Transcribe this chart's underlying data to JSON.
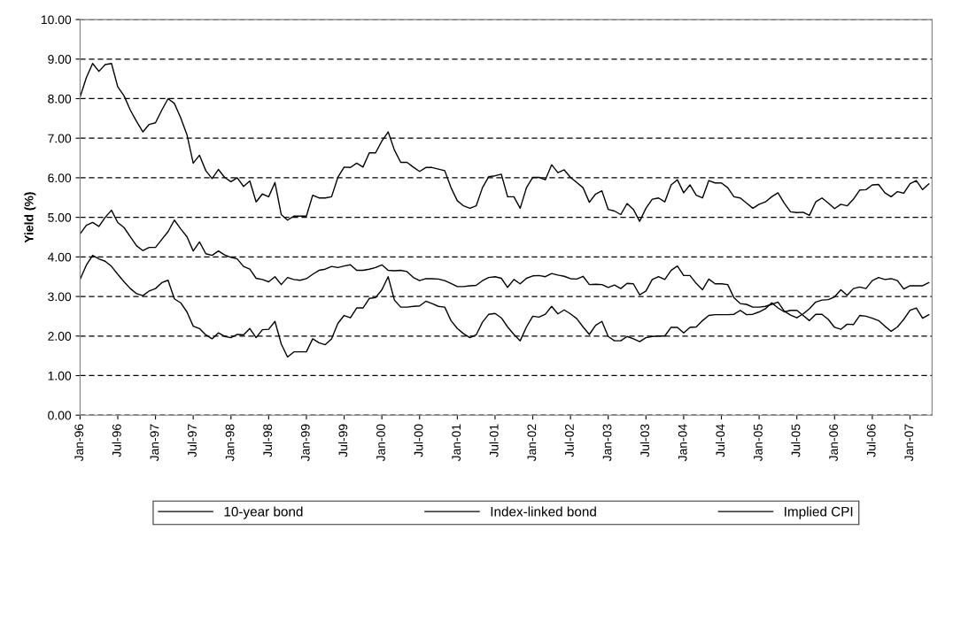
{
  "chart_data": {
    "type": "line",
    "ylabel": "Yield (%)",
    "categories": [
      "Jan-96",
      null,
      null,
      null,
      null,
      null,
      "Jul-96",
      null,
      null,
      null,
      null,
      null,
      "Jan-97",
      null,
      null,
      null,
      null,
      null,
      "Jul-97",
      null,
      null,
      null,
      null,
      null,
      "Jan-98",
      null,
      null,
      null,
      null,
      null,
      "Jul-98",
      null,
      null,
      null,
      null,
      null,
      "Jan-99",
      null,
      null,
      null,
      null,
      null,
      "Jul-99",
      null,
      null,
      null,
      null,
      null,
      "Jan-00",
      null,
      null,
      null,
      null,
      null,
      "Jul-00",
      null,
      null,
      null,
      null,
      null,
      "Jan-01",
      null,
      null,
      null,
      null,
      null,
      "Jul-01",
      null,
      null,
      null,
      null,
      null,
      "Jan-02",
      null,
      null,
      null,
      null,
      null,
      "Jul-02",
      null,
      null,
      null,
      null,
      null,
      "Jan-03",
      null,
      null,
      null,
      null,
      null,
      "Jul-03",
      null,
      null,
      null,
      null,
      null,
      "Jan-04",
      null,
      null,
      null,
      null,
      null,
      "Jul-04",
      null,
      null,
      null,
      null,
      null,
      "Jan-05",
      null,
      null,
      null,
      null,
      null,
      "Jul-05",
      null,
      null,
      null,
      null,
      null,
      "Jan-06",
      null,
      null,
      null,
      null,
      null,
      "Jul-06",
      null,
      null,
      null,
      null,
      null,
      "Jan-07",
      null,
      null,
      null
    ],
    "series": [
      {
        "name": "10-year bond",
        "color": "#000000",
        "values": [
          8.04,
          8.53,
          8.89,
          8.69,
          8.86,
          8.89,
          8.3,
          8.07,
          7.71,
          7.42,
          7.16,
          7.35,
          7.39,
          7.71,
          8.0,
          7.88,
          7.52,
          7.09,
          6.37,
          6.57,
          6.18,
          5.98,
          6.21,
          6.01,
          5.9,
          6.0,
          5.78,
          5.92,
          5.39,
          5.59,
          5.52,
          5.88,
          5.07,
          4.93,
          5.03,
          5.03,
          5.03,
          5.56,
          5.49,
          5.49,
          5.52,
          6.01,
          6.27,
          6.26,
          6.37,
          6.27,
          6.63,
          6.63,
          6.93,
          7.16,
          6.7,
          6.39,
          6.39,
          6.27,
          6.16,
          6.26,
          6.26,
          6.22,
          6.18,
          5.75,
          5.42,
          5.29,
          5.23,
          5.29,
          5.75,
          6.03,
          6.05,
          6.09,
          5.52,
          5.52,
          5.23,
          5.75,
          6.01,
          6.01,
          5.95,
          6.33,
          6.13,
          6.2,
          6.01,
          5.88,
          5.75,
          5.38,
          5.59,
          5.67,
          5.2,
          5.16,
          5.07,
          5.35,
          5.2,
          4.9,
          5.23,
          5.46,
          5.49,
          5.39,
          5.82,
          5.95,
          5.62,
          5.82,
          5.56,
          5.49,
          5.93,
          5.87,
          5.87,
          5.75,
          5.52,
          5.49,
          5.36,
          5.23,
          5.33,
          5.39,
          5.52,
          5.62,
          5.36,
          5.14,
          5.12,
          5.13,
          5.05,
          5.39,
          5.49,
          5.36,
          5.22,
          5.33,
          5.29,
          5.46,
          5.69,
          5.7,
          5.82,
          5.83,
          5.62,
          5.52,
          5.65,
          5.61,
          5.85,
          5.93,
          5.7,
          5.85
        ]
      },
      {
        "name": "Index-linked bond",
        "color": "#000000",
        "values": [
          3.43,
          3.79,
          4.04,
          3.95,
          3.89,
          3.76,
          3.56,
          3.37,
          3.2,
          3.07,
          3.02,
          3.14,
          3.2,
          3.35,
          3.41,
          2.94,
          2.84,
          2.61,
          2.25,
          2.19,
          2.03,
          1.93,
          2.08,
          1.99,
          1.96,
          2.04,
          2.03,
          2.19,
          1.96,
          2.16,
          2.17,
          2.37,
          1.8,
          1.47,
          1.6,
          1.6,
          1.6,
          1.93,
          1.83,
          1.78,
          1.93,
          2.32,
          2.52,
          2.46,
          2.71,
          2.71,
          2.95,
          2.97,
          3.17,
          3.5,
          2.91,
          2.73,
          2.73,
          2.75,
          2.76,
          2.88,
          2.82,
          2.75,
          2.73,
          2.39,
          2.19,
          2.06,
          1.96,
          2.03,
          2.35,
          2.55,
          2.57,
          2.46,
          2.23,
          2.04,
          1.88,
          2.23,
          2.5,
          2.48,
          2.55,
          2.75,
          2.56,
          2.66,
          2.56,
          2.44,
          2.23,
          2.04,
          2.27,
          2.37,
          1.99,
          1.88,
          1.88,
          1.99,
          1.93,
          1.86,
          1.96,
          1.99,
          2.0,
          2.0,
          2.22,
          2.22,
          2.08,
          2.22,
          2.23,
          2.39,
          2.52,
          2.54,
          2.54,
          2.54,
          2.55,
          2.65,
          2.54,
          2.55,
          2.61,
          2.69,
          2.84,
          2.71,
          2.61,
          2.65,
          2.65,
          2.52,
          2.39,
          2.55,
          2.55,
          2.42,
          2.22,
          2.17,
          2.3,
          2.29,
          2.52,
          2.5,
          2.45,
          2.39,
          2.25,
          2.12,
          2.23,
          2.42,
          2.65,
          2.71,
          2.45,
          2.54
        ]
      },
      {
        "name": "Implied CPI",
        "color": "#000000",
        "values": [
          4.58,
          4.8,
          4.87,
          4.77,
          5.0,
          5.18,
          4.87,
          4.74,
          4.51,
          4.28,
          4.16,
          4.24,
          4.24,
          4.44,
          4.64,
          4.93,
          4.71,
          4.51,
          4.15,
          4.38,
          4.08,
          4.04,
          4.15,
          4.05,
          3.99,
          3.95,
          3.76,
          3.69,
          3.46,
          3.43,
          3.37,
          3.5,
          3.3,
          3.48,
          3.43,
          3.41,
          3.45,
          3.56,
          3.66,
          3.69,
          3.76,
          3.73,
          3.77,
          3.8,
          3.66,
          3.66,
          3.69,
          3.73,
          3.8,
          3.66,
          3.65,
          3.66,
          3.63,
          3.48,
          3.4,
          3.45,
          3.45,
          3.44,
          3.4,
          3.33,
          3.25,
          3.25,
          3.27,
          3.28,
          3.4,
          3.48,
          3.5,
          3.46,
          3.23,
          3.43,
          3.32,
          3.46,
          3.52,
          3.53,
          3.5,
          3.58,
          3.54,
          3.51,
          3.45,
          3.44,
          3.51,
          3.3,
          3.31,
          3.3,
          3.23,
          3.29,
          3.2,
          3.33,
          3.32,
          3.04,
          3.14,
          3.43,
          3.5,
          3.43,
          3.66,
          3.77,
          3.53,
          3.53,
          3.33,
          3.17,
          3.44,
          3.32,
          3.32,
          3.3,
          2.97,
          2.82,
          2.8,
          2.73,
          2.73,
          2.75,
          2.8,
          2.86,
          2.63,
          2.53,
          2.46,
          2.56,
          2.69,
          2.86,
          2.91,
          2.92,
          2.99,
          3.17,
          3.03,
          3.2,
          3.24,
          3.2,
          3.4,
          3.48,
          3.43,
          3.45,
          3.4,
          3.19,
          3.27,
          3.27,
          3.27,
          3.35
        ]
      }
    ],
    "ylim": [
      0,
      10
    ],
    "yticks": [
      {
        "value": 0,
        "label": "0.00"
      },
      {
        "value": 1,
        "label": "1.00"
      },
      {
        "value": 2,
        "label": "2.00"
      },
      {
        "value": 3,
        "label": "3.00"
      },
      {
        "value": 4,
        "label": "4.00"
      },
      {
        "value": 5,
        "label": "5.00"
      },
      {
        "value": 6,
        "label": "6.00"
      },
      {
        "value": 7,
        "label": "7.00"
      },
      {
        "value": 8,
        "label": "8.00"
      },
      {
        "value": 9,
        "label": "9.00"
      },
      {
        "value": 10,
        "label": "10.00"
      }
    ],
    "grid": "y",
    "legend": "bottom",
    "marker": "none",
    "line_style": "solid"
  }
}
